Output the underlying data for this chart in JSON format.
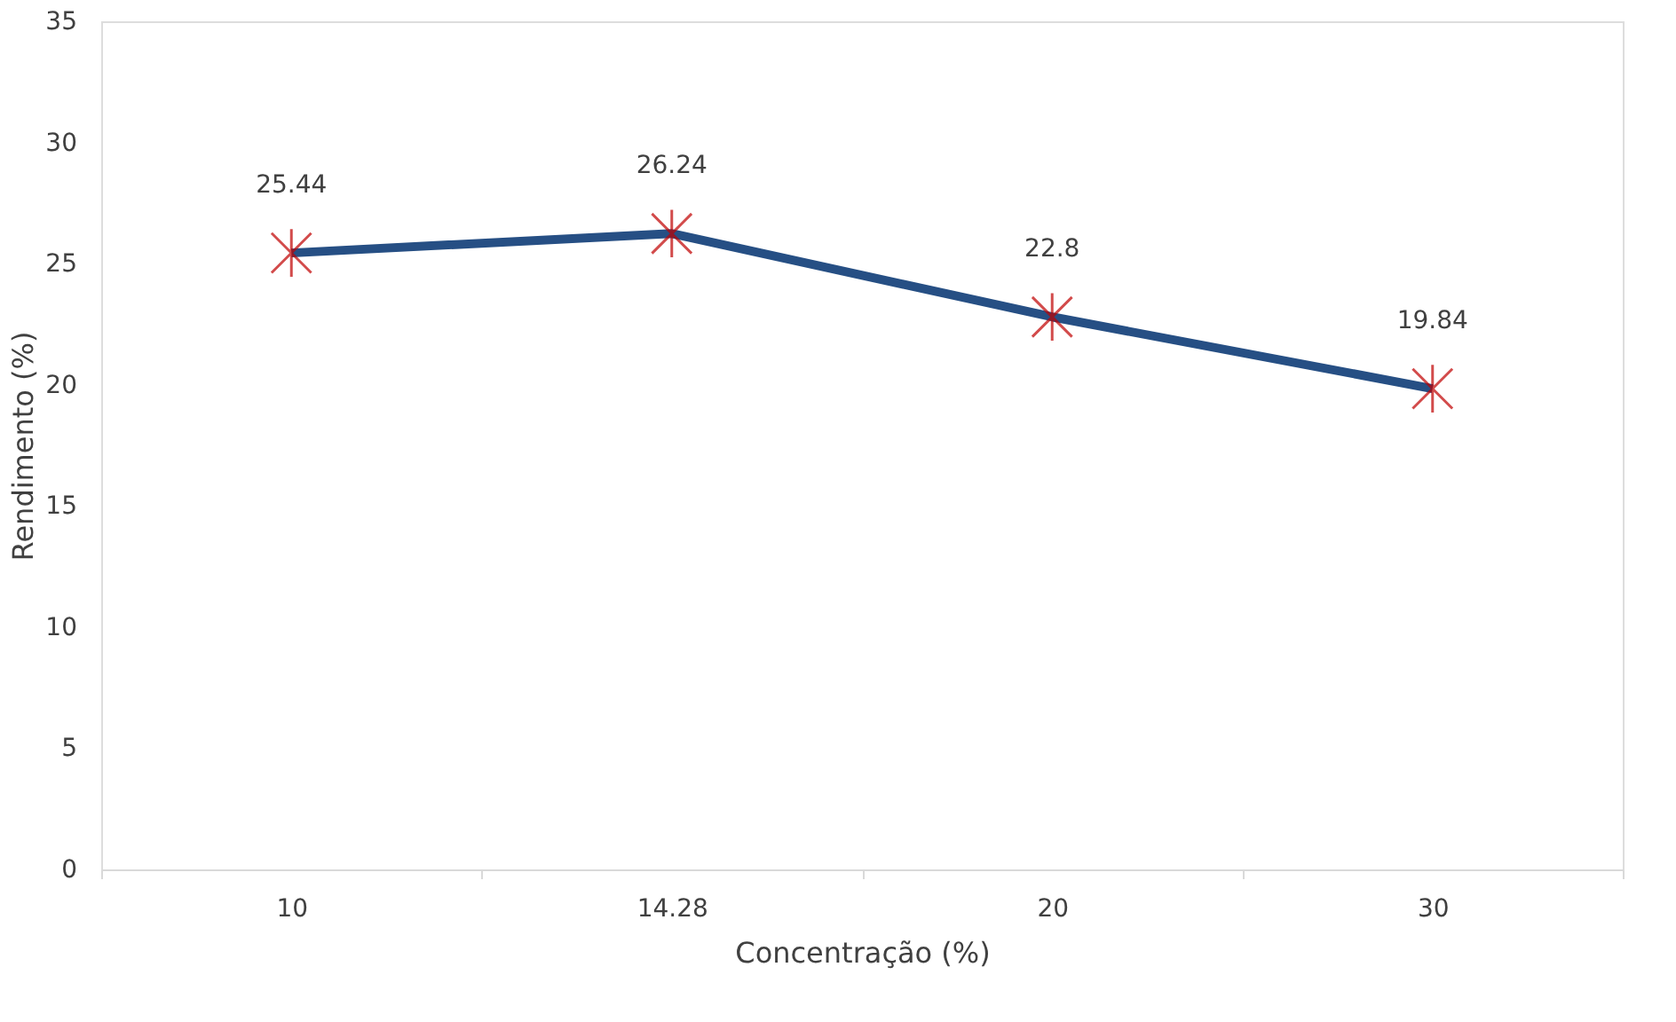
{
  "chart_data": {
    "type": "line",
    "xlabel": "Concentração (%)",
    "ylabel": "Rendimento (%)",
    "categories": [
      "10",
      "14.28",
      "20",
      "30"
    ],
    "series": [
      {
        "color": "#264f84",
        "colors": [
          "#c00000",
          "#c00000",
          "#c00000",
          "#c00000"
        ],
        "values": [
          25.44,
          26.24,
          22.8,
          19.84
        ]
      }
    ],
    "ylim": [
      0,
      35
    ],
    "yticks": [
      0,
      5,
      10,
      15,
      20,
      25,
      30,
      35
    ],
    "grid": false,
    "marker": "cross",
    "line_style": "solid",
    "data_labels": true
  }
}
